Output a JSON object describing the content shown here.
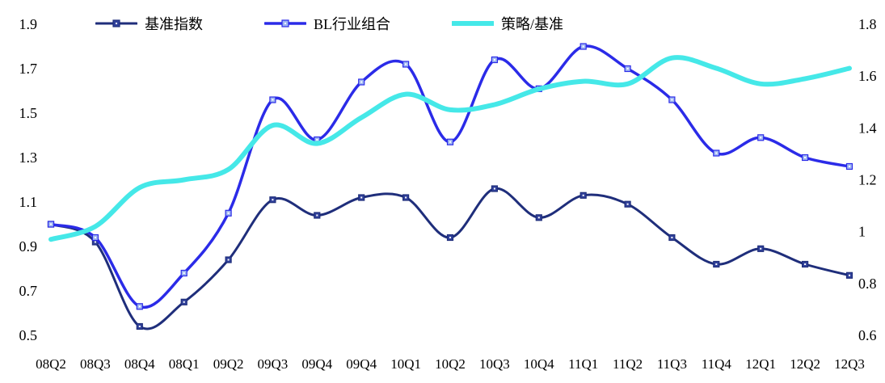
{
  "background_color": "#ffffff",
  "chart_data": {
    "type": "line",
    "title": "",
    "legend_position": "top",
    "grid": false,
    "categories": [
      "08Q2",
      "08Q3",
      "08Q4",
      "08Q1",
      "09Q2",
      "09Q3",
      "09Q4",
      "09Q4",
      "10Q1",
      "10Q2",
      "10Q3",
      "10Q4",
      "11Q1",
      "11Q2",
      "11Q3",
      "11Q4",
      "12Q1",
      "12Q2",
      "12Q3"
    ],
    "axes": {
      "left": {
        "min": 0.5,
        "max": 1.9,
        "ticks": [
          "1.9",
          "1.7",
          "1.5",
          "1.3",
          "1.1",
          "0.9",
          "0.7",
          "0.5"
        ]
      },
      "right": {
        "min": 0.6,
        "max": 1.8,
        "ticks": [
          "1.8",
          "1.6",
          "1.4",
          "1.2",
          "1",
          "0.8",
          "0.6"
        ]
      }
    },
    "series": [
      {
        "name": "基准指数",
        "axis": "left",
        "color": "#1F2E7B",
        "marker": "square",
        "marker_fill": "#31419B",
        "line_width": 3,
        "values": [
          1.0,
          0.92,
          0.54,
          0.65,
          0.84,
          1.11,
          1.04,
          1.12,
          1.12,
          0.94,
          1.16,
          1.03,
          1.13,
          1.09,
          0.94,
          0.82,
          0.89,
          0.82,
          0.77
        ]
      },
      {
        "name": "BL行业组合",
        "axis": "left",
        "color": "#2B2BE8",
        "marker": "square",
        "marker_fill": "#9FB6F2",
        "line_width": 3.5,
        "values": [
          1.0,
          0.94,
          0.63,
          0.78,
          1.05,
          1.56,
          1.38,
          1.64,
          1.72,
          1.37,
          1.74,
          1.61,
          1.8,
          1.7,
          1.56,
          1.32,
          1.39,
          1.3,
          1.26
        ]
      },
      {
        "name": "策略/基准",
        "axis": "right",
        "color": "#45E8E8",
        "marker": "none",
        "marker_fill": "#45E8E8",
        "line_width": 6,
        "values": [
          0.97,
          1.02,
          1.17,
          1.2,
          1.24,
          1.41,
          1.34,
          1.44,
          1.53,
          1.47,
          1.49,
          1.55,
          1.58,
          1.57,
          1.67,
          1.63,
          1.57,
          1.59,
          1.63
        ]
      }
    ]
  }
}
